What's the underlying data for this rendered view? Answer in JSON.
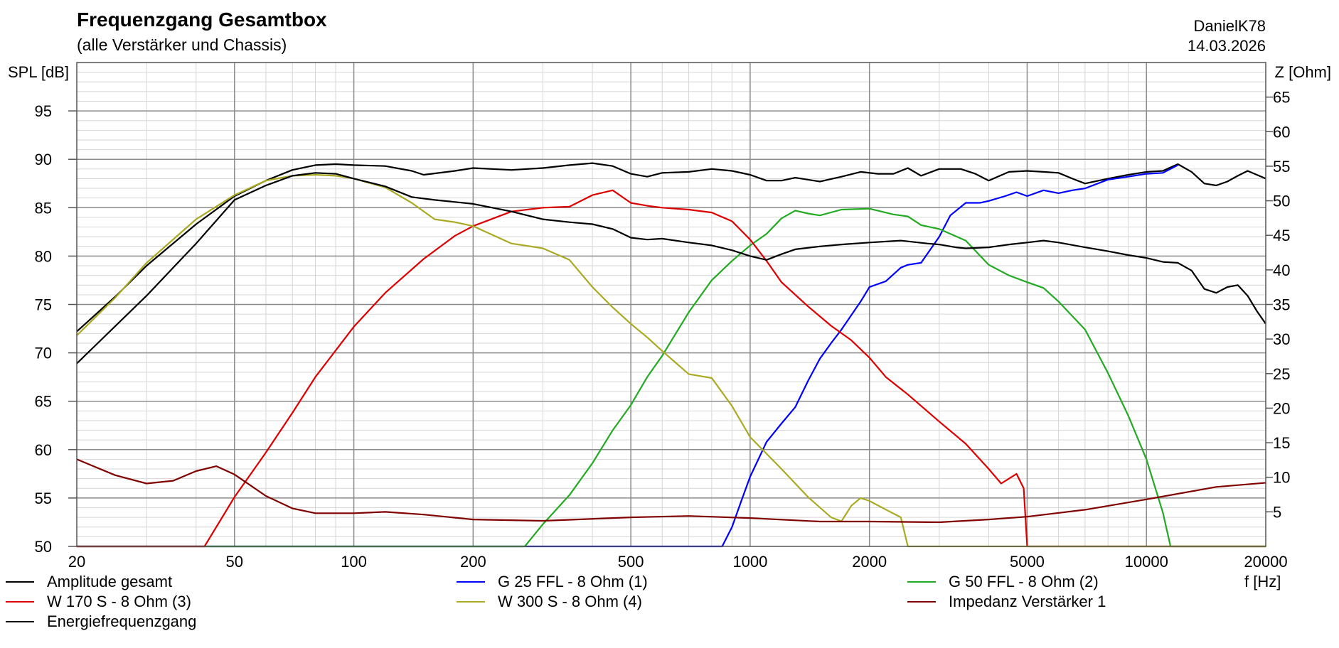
{
  "header": {
    "title": "Frequenzgang Gesamtbox",
    "subtitle": "(alle Verstärker und Chassis)",
    "author": "DanielK78",
    "date": "14.03.2026"
  },
  "chart_data": {
    "type": "line",
    "xscale": "log",
    "xlim": [
      20,
      20000
    ],
    "ylim_left": [
      50,
      100
    ],
    "ylim_right": [
      0,
      70
    ],
    "xlabel": "f [Hz]",
    "ylabel_left": "SPL [dB]",
    "ylabel_right": "Z [Ohm]",
    "x_ticks": [
      "20",
      "50",
      "100",
      "200",
      "500",
      "1000",
      "2000",
      "5000",
      "10000",
      "20000"
    ],
    "y_ticks_left": [
      "50",
      "55",
      "60",
      "65",
      "70",
      "75",
      "80",
      "85",
      "90",
      "95"
    ],
    "y_ticks_right": [
      "5",
      "10",
      "15",
      "20",
      "25",
      "30",
      "35",
      "40",
      "45",
      "50",
      "55",
      "60",
      "65"
    ],
    "grid": true,
    "legend_position": "bottom",
    "series": [
      {
        "name": "Amplitude gesamt",
        "color": "#000000",
        "axis": "left",
        "points": [
          [
            20,
            72.2
          ],
          [
            25,
            75.8
          ],
          [
            30,
            79
          ],
          [
            40,
            83.3
          ],
          [
            50,
            86.2
          ],
          [
            60,
            87.8
          ],
          [
            70,
            88.9
          ],
          [
            80,
            89.4
          ],
          [
            90,
            89.5
          ],
          [
            100,
            89.4
          ],
          [
            120,
            89.3
          ],
          [
            140,
            88.8
          ],
          [
            150,
            88.4
          ],
          [
            180,
            88.8
          ],
          [
            200,
            89.1
          ],
          [
            250,
            88.9
          ],
          [
            300,
            89.1
          ],
          [
            350,
            89.4
          ],
          [
            400,
            89.6
          ],
          [
            450,
            89.3
          ],
          [
            500,
            88.5
          ],
          [
            550,
            88.2
          ],
          [
            600,
            88.6
          ],
          [
            700,
            88.7
          ],
          [
            800,
            89
          ],
          [
            900,
            88.8
          ],
          [
            1000,
            88.4
          ],
          [
            1100,
            87.8
          ],
          [
            1200,
            87.8
          ],
          [
            1300,
            88.1
          ],
          [
            1500,
            87.7
          ],
          [
            1700,
            88.2
          ],
          [
            1900,
            88.7
          ],
          [
            2100,
            88.5
          ],
          [
            2300,
            88.5
          ],
          [
            2500,
            89.1
          ],
          [
            2700,
            88.3
          ],
          [
            3000,
            89
          ],
          [
            3400,
            89
          ],
          [
            3700,
            88.5
          ],
          [
            4000,
            87.8
          ],
          [
            4500,
            88.7
          ],
          [
            5000,
            88.8
          ],
          [
            5500,
            88.7
          ],
          [
            6000,
            88.6
          ],
          [
            6500,
            88
          ],
          [
            7000,
            87.5
          ],
          [
            8000,
            88
          ],
          [
            9000,
            88.4
          ],
          [
            10000,
            88.7
          ],
          [
            11000,
            88.8
          ],
          [
            12000,
            89.5
          ],
          [
            13000,
            88.7
          ],
          [
            14000,
            87.5
          ],
          [
            15000,
            87.3
          ],
          [
            16000,
            87.7
          ],
          [
            17000,
            88.3
          ],
          [
            18000,
            88.8
          ],
          [
            20000,
            88
          ]
        ]
      },
      {
        "name": "G 25 FFL - 8 Ohm (1)",
        "color": "#0000ff",
        "axis": "left",
        "points": [
          [
            20,
            50
          ],
          [
            850,
            50
          ],
          [
            900,
            52
          ],
          [
            950,
            54.7
          ],
          [
            1000,
            57.2
          ],
          [
            1100,
            60.8
          ],
          [
            1200,
            62.7
          ],
          [
            1300,
            64.4
          ],
          [
            1400,
            67.1
          ],
          [
            1500,
            69.4
          ],
          [
            1600,
            71
          ],
          [
            1700,
            72.4
          ],
          [
            1900,
            75.3
          ],
          [
            2000,
            76.8
          ],
          [
            2200,
            77.4
          ],
          [
            2400,
            78.8
          ],
          [
            2500,
            79.1
          ],
          [
            2700,
            79.3
          ],
          [
            3000,
            82
          ],
          [
            3200,
            84.2
          ],
          [
            3500,
            85.5
          ],
          [
            3800,
            85.5
          ],
          [
            4000,
            85.7
          ],
          [
            4400,
            86.2
          ],
          [
            4700,
            86.6
          ],
          [
            5000,
            86.2
          ],
          [
            5500,
            86.8
          ],
          [
            6000,
            86.5
          ],
          [
            6500,
            86.8
          ],
          [
            7000,
            87
          ],
          [
            8000,
            87.9
          ],
          [
            9000,
            88.2
          ],
          [
            10000,
            88.5
          ],
          [
            11000,
            88.6
          ],
          [
            12000,
            89.4
          ]
        ]
      },
      {
        "name": "G 50 FFL - 8 Ohm (2)",
        "color": "#22aa22",
        "axis": "left",
        "points": [
          [
            20,
            50
          ],
          [
            270,
            50
          ],
          [
            300,
            52.3
          ],
          [
            350,
            55.3
          ],
          [
            400,
            58.6
          ],
          [
            450,
            62
          ],
          [
            500,
            64.6
          ],
          [
            550,
            67.5
          ],
          [
            600,
            69.7
          ],
          [
            700,
            74.2
          ],
          [
            800,
            77.5
          ],
          [
            900,
            79.5
          ],
          [
            1000,
            81.1
          ],
          [
            1100,
            82.3
          ],
          [
            1200,
            83.9
          ],
          [
            1300,
            84.7
          ],
          [
            1400,
            84.4
          ],
          [
            1500,
            84.2
          ],
          [
            1700,
            84.8
          ],
          [
            2000,
            84.9
          ],
          [
            2300,
            84.3
          ],
          [
            2500,
            84.1
          ],
          [
            2700,
            83.2
          ],
          [
            3000,
            82.8
          ],
          [
            3500,
            81.6
          ],
          [
            4000,
            79.1
          ],
          [
            4500,
            78
          ],
          [
            5000,
            77.3
          ],
          [
            5500,
            76.7
          ],
          [
            6000,
            75.3
          ],
          [
            7000,
            72.4
          ],
          [
            8000,
            67.9
          ],
          [
            9000,
            63.5
          ],
          [
            10000,
            59
          ],
          [
            11000,
            53.5
          ],
          [
            11500,
            50
          ],
          [
            20000,
            50
          ]
        ]
      },
      {
        "name": "W 170 S - 8 Ohm (3)",
        "color": "#dd0000",
        "axis": "left",
        "points": [
          [
            20,
            50
          ],
          [
            42,
            50
          ],
          [
            50,
            55.1
          ],
          [
            60,
            59.7
          ],
          [
            70,
            63.8
          ],
          [
            80,
            67.5
          ],
          [
            100,
            72.7
          ],
          [
            120,
            76.2
          ],
          [
            150,
            79.7
          ],
          [
            180,
            82.1
          ],
          [
            200,
            83.1
          ],
          [
            250,
            84.6
          ],
          [
            300,
            85
          ],
          [
            350,
            85.1
          ],
          [
            400,
            86.3
          ],
          [
            450,
            86.8
          ],
          [
            500,
            85.5
          ],
          [
            550,
            85.2
          ],
          [
            600,
            85
          ],
          [
            700,
            84.8
          ],
          [
            800,
            84.5
          ],
          [
            900,
            83.6
          ],
          [
            1000,
            81.7
          ],
          [
            1100,
            79.5
          ],
          [
            1200,
            77.3
          ],
          [
            1400,
            74.8
          ],
          [
            1600,
            72.8
          ],
          [
            1800,
            71.3
          ],
          [
            2000,
            69.5
          ],
          [
            2200,
            67.5
          ],
          [
            2500,
            65.7
          ],
          [
            3000,
            62.9
          ],
          [
            3500,
            60.6
          ],
          [
            4000,
            58
          ],
          [
            4300,
            56.5
          ],
          [
            4700,
            57.5
          ],
          [
            4900,
            56
          ],
          [
            5000,
            50
          ],
          [
            20000,
            50
          ]
        ]
      },
      {
        "name": "W 300 S - 8 Ohm (4)",
        "color": "#aaaa22",
        "axis": "left",
        "points": [
          [
            20,
            71.8
          ],
          [
            25,
            75.7
          ],
          [
            30,
            79.3
          ],
          [
            40,
            83.8
          ],
          [
            50,
            86.3
          ],
          [
            60,
            87.8
          ],
          [
            70,
            88.3
          ],
          [
            80,
            88.4
          ],
          [
            90,
            88.3
          ],
          [
            100,
            88
          ],
          [
            120,
            87.1
          ],
          [
            140,
            85.5
          ],
          [
            160,
            83.8
          ],
          [
            180,
            83.5
          ],
          [
            200,
            83.1
          ],
          [
            250,
            81.3
          ],
          [
            300,
            80.8
          ],
          [
            350,
            79.6
          ],
          [
            400,
            76.8
          ],
          [
            450,
            74.7
          ],
          [
            500,
            73
          ],
          [
            550,
            71.6
          ],
          [
            600,
            70.2
          ],
          [
            700,
            67.8
          ],
          [
            800,
            67.4
          ],
          [
            900,
            64.5
          ],
          [
            1000,
            61.3
          ],
          [
            1200,
            58
          ],
          [
            1400,
            55.1
          ],
          [
            1600,
            53
          ],
          [
            1700,
            52.6
          ],
          [
            1800,
            54.2
          ],
          [
            1900,
            55
          ],
          [
            2000,
            54.7
          ],
          [
            2200,
            53.8
          ],
          [
            2400,
            53
          ],
          [
            2500,
            50
          ],
          [
            20000,
            50
          ]
        ]
      },
      {
        "name": "Impedanz Verstärker 1",
        "color": "#800000",
        "axis": "right",
        "points": [
          [
            20,
            12.6
          ],
          [
            25,
            10.3
          ],
          [
            30,
            9.1
          ],
          [
            35,
            9.5
          ],
          [
            40,
            10.9
          ],
          [
            45,
            11.6
          ],
          [
            50,
            10.4
          ],
          [
            60,
            7.3
          ],
          [
            70,
            5.5
          ],
          [
            80,
            4.8
          ],
          [
            100,
            4.8
          ],
          [
            120,
            5
          ],
          [
            150,
            4.6
          ],
          [
            200,
            3.9
          ],
          [
            300,
            3.7
          ],
          [
            500,
            4.2
          ],
          [
            700,
            4.4
          ],
          [
            1000,
            4.1
          ],
          [
            1500,
            3.6
          ],
          [
            2000,
            3.6
          ],
          [
            3000,
            3.5
          ],
          [
            4000,
            3.9
          ],
          [
            5000,
            4.3
          ],
          [
            7000,
            5.3
          ],
          [
            10000,
            6.8
          ],
          [
            15000,
            8.6
          ],
          [
            20000,
            9.2
          ]
        ]
      },
      {
        "name": "Energiefrequenzgang",
        "color": "#000000",
        "axis": "left",
        "points": [
          [
            20,
            68.9
          ],
          [
            30,
            75.9
          ],
          [
            40,
            81.3
          ],
          [
            50,
            85.8
          ],
          [
            60,
            87.3
          ],
          [
            70,
            88.3
          ],
          [
            80,
            88.6
          ],
          [
            90,
            88.5
          ],
          [
            100,
            88
          ],
          [
            120,
            87.2
          ],
          [
            140,
            86.1
          ],
          [
            160,
            85.8
          ],
          [
            200,
            85.4
          ],
          [
            250,
            84.6
          ],
          [
            300,
            83.8
          ],
          [
            350,
            83.5
          ],
          [
            400,
            83.3
          ],
          [
            450,
            82.8
          ],
          [
            500,
            81.9
          ],
          [
            550,
            81.7
          ],
          [
            600,
            81.8
          ],
          [
            700,
            81.4
          ],
          [
            800,
            81.1
          ],
          [
            900,
            80.6
          ],
          [
            1000,
            80
          ],
          [
            1100,
            79.6
          ],
          [
            1200,
            80.2
          ],
          [
            1300,
            80.7
          ],
          [
            1500,
            81
          ],
          [
            1700,
            81.2
          ],
          [
            2000,
            81.4
          ],
          [
            2400,
            81.6
          ],
          [
            2800,
            81.3
          ],
          [
            3000,
            81.2
          ],
          [
            3300,
            80.9
          ],
          [
            3500,
            80.8
          ],
          [
            4000,
            80.9
          ],
          [
            4500,
            81.2
          ],
          [
            5000,
            81.4
          ],
          [
            5500,
            81.6
          ],
          [
            6000,
            81.4
          ],
          [
            7000,
            80.9
          ],
          [
            8000,
            80.5
          ],
          [
            9000,
            80.1
          ],
          [
            10000,
            79.8
          ],
          [
            11000,
            79.4
          ],
          [
            12000,
            79.3
          ],
          [
            13000,
            78.5
          ],
          [
            14000,
            76.6
          ],
          [
            15000,
            76.2
          ],
          [
            16000,
            76.8
          ],
          [
            17000,
            77
          ],
          [
            18000,
            75.9
          ],
          [
            19000,
            74.3
          ],
          [
            20000,
            73
          ]
        ]
      }
    ]
  }
}
